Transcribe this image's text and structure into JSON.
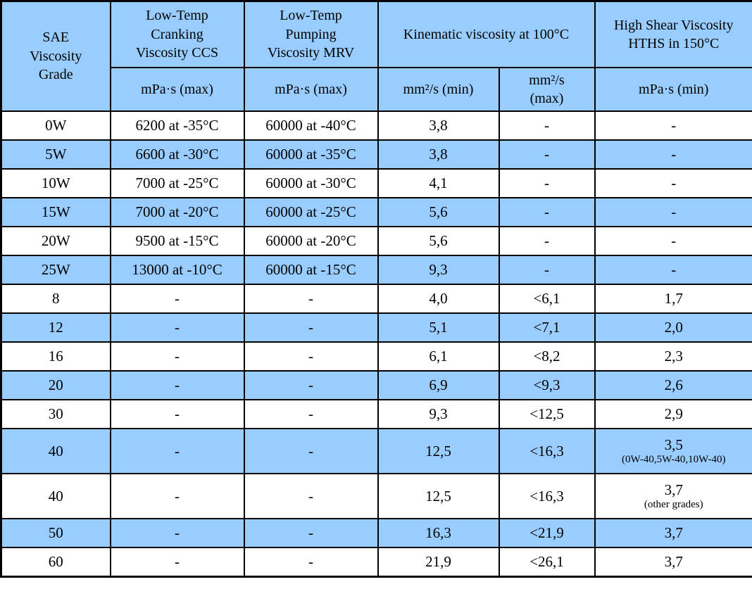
{
  "colors": {
    "row_highlight": "#99CCFF",
    "border": "#000000",
    "text": "#000000",
    "background": "#FFFFFF"
  },
  "table": {
    "header": {
      "sae": "SAE\nViscosity\nGrade",
      "ccs": "Low-Temp\nCranking\nViscosity CCS",
      "mrv": "Low-Temp\nPumping\nViscosity MRV",
      "kinematic": "Kinematic viscosity at 100°C",
      "hths": "High Shear Viscosity\nHTHS in 150°C",
      "ccs_unit": "mPa·s (max)",
      "mrv_unit": "mPa·s (max)",
      "kv_min_unit": "mm²/s (min)",
      "kv_max_unit": "mm²/s\n(max)",
      "hths_unit": "mPa·s (min)"
    },
    "rows": [
      {
        "grade": "0W",
        "ccs": "6200 at -35°C",
        "mrv": "60000 at -40°C",
        "kv_min": "3,8",
        "kv_max": "-",
        "hths": "-",
        "shaded": false
      },
      {
        "grade": "5W",
        "ccs": "6600 at -30°C",
        "mrv": "60000 at -35°C",
        "kv_min": "3,8",
        "kv_max": "-",
        "hths": "-",
        "shaded": true
      },
      {
        "grade": "10W",
        "ccs": "7000 at -25°C",
        "mrv": "60000 at -30°C",
        "kv_min": "4,1",
        "kv_max": "-",
        "hths": "-",
        "shaded": false
      },
      {
        "grade": "15W",
        "ccs": "7000 at -20°C",
        "mrv": "60000 at -25°C",
        "kv_min": "5,6",
        "kv_max": "-",
        "hths": "-",
        "shaded": true
      },
      {
        "grade": "20W",
        "ccs": "9500 at -15°C",
        "mrv": "60000 at -20°C",
        "kv_min": "5,6",
        "kv_max": "-",
        "hths": "-",
        "shaded": false
      },
      {
        "grade": "25W",
        "ccs": "13000 at -10°C",
        "mrv": "60000 at -15°C",
        "kv_min": "9,3",
        "kv_max": "-",
        "hths": "-",
        "shaded": true
      },
      {
        "grade": "8",
        "ccs": "-",
        "mrv": "-",
        "kv_min": "4,0",
        "kv_max": "<6,1",
        "hths": "1,7",
        "shaded": false
      },
      {
        "grade": "12",
        "ccs": "-",
        "mrv": "-",
        "kv_min": "5,1",
        "kv_max": "<7,1",
        "hths": "2,0",
        "shaded": true
      },
      {
        "grade": "16",
        "ccs": "-",
        "mrv": "-",
        "kv_min": "6,1",
        "kv_max": "<8,2",
        "hths": "2,3",
        "shaded": false
      },
      {
        "grade": "20",
        "ccs": "-",
        "mrv": "-",
        "kv_min": "6,9",
        "kv_max": "<9,3",
        "hths": "2,6",
        "shaded": true
      },
      {
        "grade": "30",
        "ccs": "-",
        "mrv": "-",
        "kv_min": "9,3",
        "kv_max": "<12,5",
        "hths": "2,9",
        "shaded": false
      },
      {
        "grade": "40",
        "ccs": "-",
        "mrv": "-",
        "kv_min": "12,5",
        "kv_max": "<16,3",
        "hths": "3,5",
        "hths_note": "(0W-40,5W-40,10W-40)",
        "shaded": true
      },
      {
        "grade": "40",
        "ccs": "-",
        "mrv": "-",
        "kv_min": "12,5",
        "kv_max": "<16,3",
        "hths": "3,7",
        "hths_note": "(other grades)",
        "shaded": false
      },
      {
        "grade": "50",
        "ccs": "-",
        "mrv": "-",
        "kv_min": "16,3",
        "kv_max": "<21,9",
        "hths": "3,7",
        "shaded": true
      },
      {
        "grade": "60",
        "ccs": "-",
        "mrv": "-",
        "kv_min": "21,9",
        "kv_max": "<26,1",
        "hths": "3,7",
        "shaded": false
      }
    ]
  }
}
